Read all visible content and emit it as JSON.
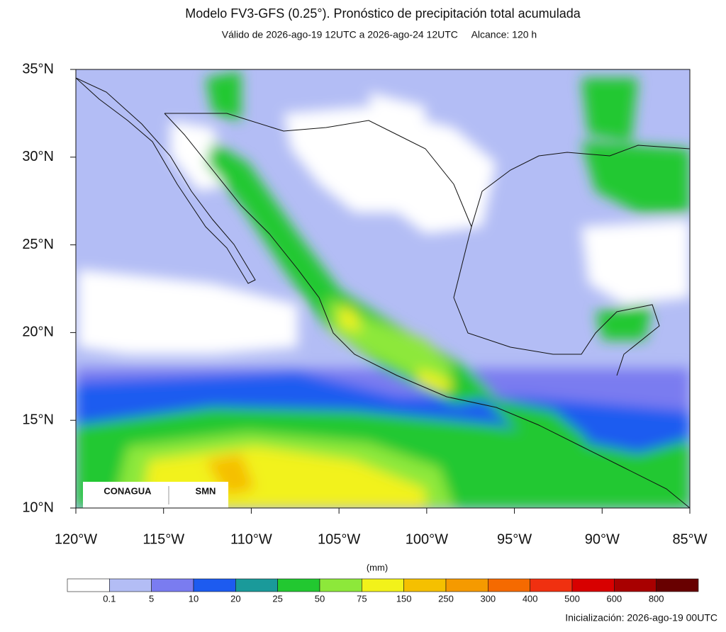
{
  "map": {
    "title": "Modelo FV3-GFS (0.25°). Pronóstico de precipitación total acumulada",
    "subtitle": "Válido de 2026-ago-19 12UTC a 2026-ago-24 12UTC     Alcance: 120 h",
    "lonlim": [
      -120,
      -85
    ],
    "latlim": [
      10,
      35
    ],
    "lon_ticks": [
      {
        "value": -120,
        "label": "120°W"
      },
      {
        "value": -115,
        "label": "115°W"
      },
      {
        "value": -110,
        "label": "110°W"
      },
      {
        "value": -105,
        "label": "105°W"
      },
      {
        "value": -100,
        "label": "100°W"
      },
      {
        "value": -95,
        "label": "95°W"
      },
      {
        "value": -90,
        "label": "90°W"
      },
      {
        "value": -85,
        "label": "85°W"
      }
    ],
    "lat_ticks": [
      {
        "value": 10,
        "label": "10°N"
      },
      {
        "value": 15,
        "label": "15°N"
      },
      {
        "value": 20,
        "label": "20°N"
      },
      {
        "value": 25,
        "label": "25°N"
      },
      {
        "value": 30,
        "label": "30°N"
      },
      {
        "value": 35,
        "label": "35°N"
      }
    ],
    "colorbar": {
      "unit": "(mm)",
      "labels": [
        "0.1",
        "5",
        "10",
        "20",
        "25",
        "50",
        "75",
        "150",
        "250",
        "300",
        "400",
        "500",
        "600",
        "800"
      ],
      "colors": [
        "#ffffff",
        "#b3bdf5",
        "#7a7cf0",
        "#1d5bf0",
        "#1a9a9a",
        "#22c830",
        "#8de83a",
        "#f2f21a",
        "#f5c000",
        "#f59a00",
        "#f56a00",
        "#f03010",
        "#d80000",
        "#a80000",
        "#680000"
      ]
    },
    "initialization": "Inicialización: 2026-ago-19 00UTC",
    "logos": [
      "CONAGUA",
      "SMN"
    ]
  }
}
